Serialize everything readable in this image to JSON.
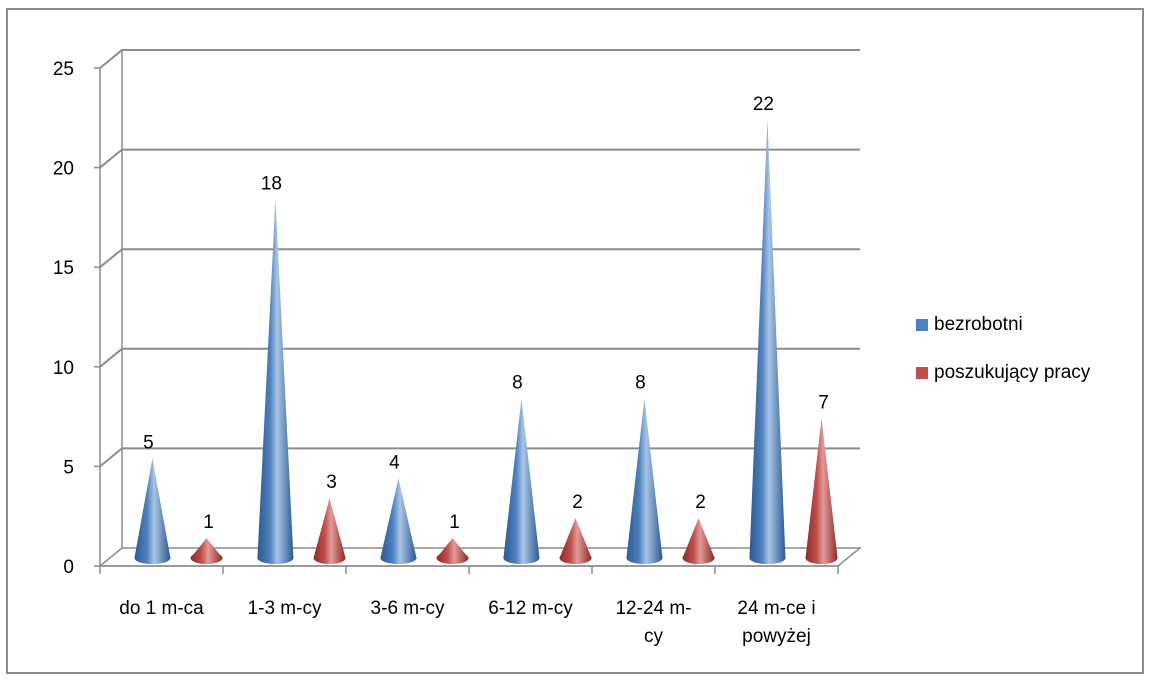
{
  "chart_data": {
    "type": "bar",
    "style": "3d-cone",
    "title": "",
    "xlabel": "",
    "ylabel": "",
    "ylim": [
      0,
      25
    ],
    "yticks": [
      0,
      5,
      10,
      15,
      20,
      25
    ],
    "grid": true,
    "legend": "right",
    "categories": [
      [
        "do 1 m-ca"
      ],
      [
        "1-3 m-cy"
      ],
      [
        "3-6 m-cy"
      ],
      [
        "6-12 m-cy"
      ],
      [
        "12-24 m-",
        "cy"
      ],
      [
        "24 m-ce i",
        "powyżej"
      ]
    ],
    "series": [
      {
        "name": "bezrobotni",
        "color": "#4f81bd",
        "values": [
          5,
          18,
          4,
          8,
          8,
          22
        ]
      },
      {
        "name": "poszukujący pracy",
        "color": "#c0504d",
        "values": [
          1,
          3,
          1,
          2,
          2,
          7
        ]
      }
    ]
  }
}
